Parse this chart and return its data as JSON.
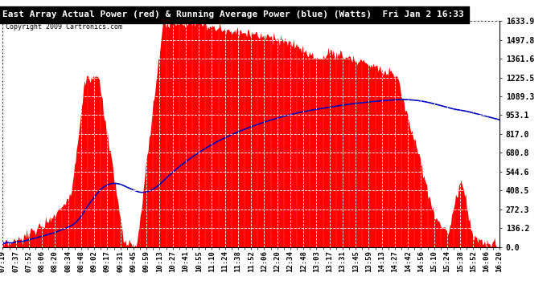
{
  "title": "East Array Actual Power (red) & Running Average Power (blue) (Watts)  Fri Jan 2 16:33",
  "copyright": "Copyright 2009 Cartronics.com",
  "yticks": [
    0.0,
    136.2,
    272.3,
    408.5,
    544.6,
    680.8,
    817.0,
    953.1,
    1089.3,
    1225.5,
    1361.6,
    1497.8,
    1633.9
  ],
  "xtick_labels": [
    "07:19",
    "07:37",
    "07:52",
    "08:06",
    "08:20",
    "08:34",
    "08:48",
    "09:02",
    "09:17",
    "09:31",
    "09:45",
    "09:59",
    "10:13",
    "10:27",
    "10:41",
    "10:55",
    "11:10",
    "11:24",
    "11:38",
    "11:52",
    "12:06",
    "12:20",
    "12:34",
    "12:48",
    "13:03",
    "13:17",
    "13:31",
    "13:45",
    "13:59",
    "14:13",
    "14:27",
    "14:42",
    "14:56",
    "15:10",
    "15:24",
    "15:38",
    "15:52",
    "16:06",
    "16:20"
  ],
  "ymax": 1633.9,
  "actual_color": "#FF0000",
  "avg_color": "#0000BB",
  "bg_color": "#FFFFFF",
  "plot_bg_color": "#FFFFFF",
  "grid_color": "#CCCCCC",
  "title_bg": "#000000",
  "title_fg": "#FFFFFF"
}
